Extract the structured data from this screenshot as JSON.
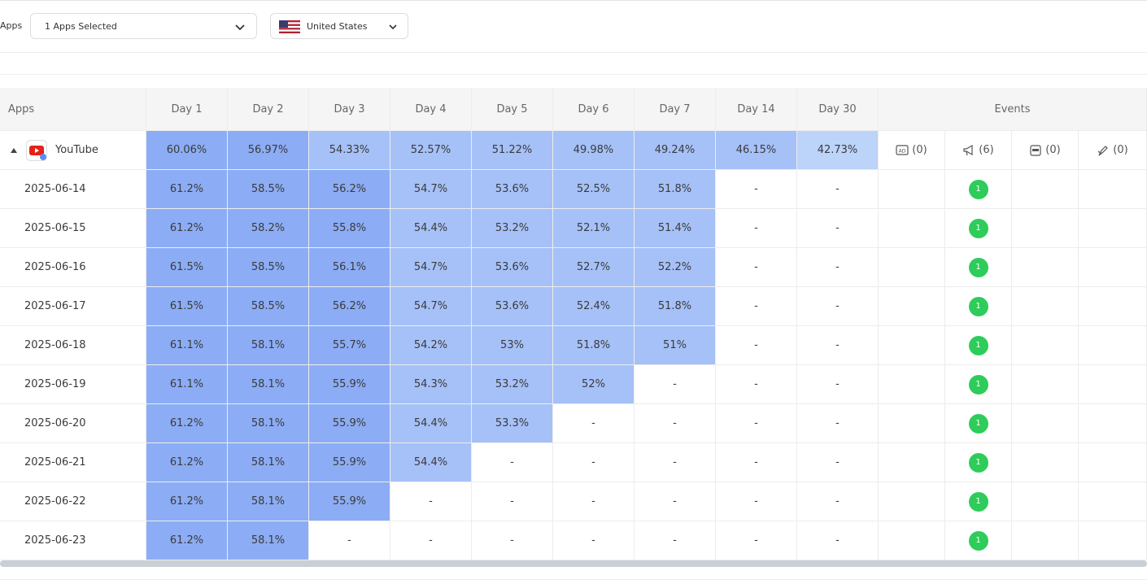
{
  "filters": {
    "label": "Apps",
    "apps": "1 Apps Selected",
    "country": "United States"
  },
  "table": {
    "headers": [
      "Apps",
      "Day 1",
      "Day 2",
      "Day 3",
      "Day 4",
      "Day 5",
      "Day 6",
      "Day 7",
      "Day 14",
      "Day 30",
      "Events"
    ],
    "heat_colors": [
      "#8cadf5",
      "#a6c1f8",
      "#bcd3fa"
    ],
    "summary": {
      "app": "YouTube",
      "cells": [
        "60.06%",
        "56.97%",
        "54.33%",
        "52.57%",
        "51.22%",
        "49.98%",
        "49.24%",
        "46.15%",
        "42.73%"
      ],
      "events": [
        "(0)",
        "(6)",
        "(0)",
        "(0)"
      ]
    },
    "rows": [
      {
        "date": "2025-06-14",
        "cells": [
          "61.2%",
          "58.5%",
          "56.2%",
          "54.7%",
          "53.6%",
          "52.5%",
          "51.8%",
          "-",
          "-"
        ],
        "event": "1"
      },
      {
        "date": "2025-06-15",
        "cells": [
          "61.2%",
          "58.2%",
          "55.8%",
          "54.4%",
          "53.2%",
          "52.1%",
          "51.4%",
          "-",
          "-"
        ],
        "event": "1"
      },
      {
        "date": "2025-06-16",
        "cells": [
          "61.5%",
          "58.5%",
          "56.1%",
          "54.7%",
          "53.6%",
          "52.7%",
          "52.2%",
          "-",
          "-"
        ],
        "event": "1"
      },
      {
        "date": "2025-06-17",
        "cells": [
          "61.5%",
          "58.5%",
          "56.2%",
          "54.7%",
          "53.6%",
          "52.4%",
          "51.8%",
          "-",
          "-"
        ],
        "event": "1"
      },
      {
        "date": "2025-06-18",
        "cells": [
          "61.1%",
          "58.1%",
          "55.7%",
          "54.2%",
          "53%",
          "51.8%",
          "51%",
          "-",
          "-"
        ],
        "event": "1"
      },
      {
        "date": "2025-06-19",
        "cells": [
          "61.1%",
          "58.1%",
          "55.9%",
          "54.3%",
          "53.2%",
          "52%",
          "-",
          "-",
          "-"
        ],
        "event": "1"
      },
      {
        "date": "2025-06-20",
        "cells": [
          "61.2%",
          "58.1%",
          "55.9%",
          "54.4%",
          "53.3%",
          "-",
          "-",
          "-",
          "-"
        ],
        "event": "1"
      },
      {
        "date": "2025-06-21",
        "cells": [
          "61.2%",
          "58.1%",
          "55.9%",
          "54.4%",
          "-",
          "-",
          "-",
          "-",
          "-"
        ],
        "event": "1"
      },
      {
        "date": "2025-06-22",
        "cells": [
          "61.2%",
          "58.1%",
          "55.9%",
          "-",
          "-",
          "-",
          "-",
          "-",
          "-"
        ],
        "event": "1"
      },
      {
        "date": "2025-06-23",
        "cells": [
          "61.2%",
          "58.1%",
          "-",
          "-",
          "-",
          "-",
          "-",
          "-",
          "-"
        ],
        "event": "1"
      }
    ]
  }
}
